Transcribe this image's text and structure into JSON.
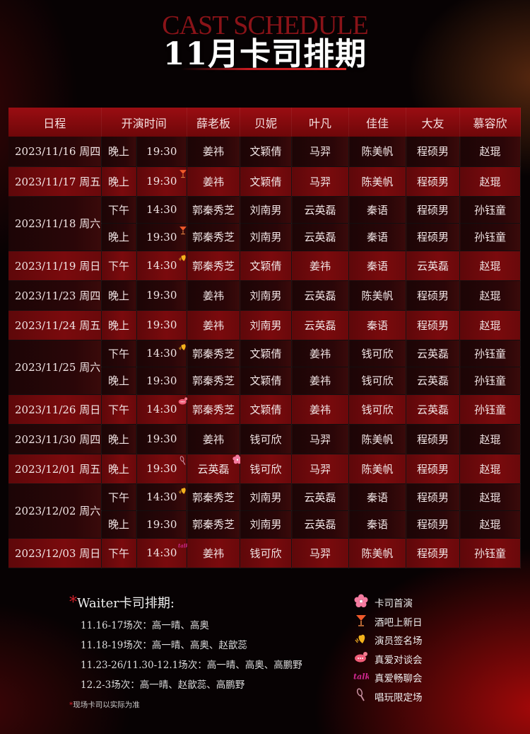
{
  "header": {
    "english_title": "CAST SCHEDULE",
    "title": "11月卡司排期"
  },
  "table": {
    "columns": [
      "日程",
      "开演时间",
      "薛老板",
      "贝妮",
      "叶凡",
      "佳佳",
      "大友",
      "慕容欣"
    ],
    "schedule": [
      {
        "date": "2023/11/16 周四",
        "shows": [
          {
            "period": "晚上",
            "time": "19:30",
            "cast": [
              "姜祎",
              "文颖倩",
              "马羿",
              "陈美帆",
              "程硕男",
              "赵琨"
            ],
            "marks": []
          }
        ]
      },
      {
        "date": "2023/11/17 周五",
        "shows": [
          {
            "period": "晚上",
            "time": "19:30",
            "cast": [
              "姜祎",
              "文颖倩",
              "马羿",
              "陈美帆",
              "程硕男",
              "赵琨"
            ],
            "marks": [
              "cocktail"
            ]
          }
        ]
      },
      {
        "date": "2023/11/18 周六",
        "shows": [
          {
            "period": "下午",
            "time": "14:30",
            "cast": [
              "郭秦秀芝",
              "刘南男",
              "云英磊",
              "秦语",
              "程硕男",
              "孙钰童"
            ],
            "marks": []
          },
          {
            "period": "晚上",
            "time": "19:30",
            "cast": [
              "郭秦秀芝",
              "刘南男",
              "云英磊",
              "秦语",
              "程硕男",
              "孙钰童"
            ],
            "marks": [
              "cocktail"
            ]
          }
        ]
      },
      {
        "date": "2023/11/19 周日",
        "shows": [
          {
            "period": "下午",
            "time": "14:30",
            "cast": [
              "郭秦秀芝",
              "文颖倩",
              "姜祎",
              "秦语",
              "云英磊",
              "赵琨"
            ],
            "marks": [
              "heart"
            ]
          }
        ]
      },
      {
        "date": "2023/11/23 周四",
        "shows": [
          {
            "period": "晚上",
            "time": "19:30",
            "cast": [
              "姜祎",
              "刘南男",
              "云英磊",
              "陈美帆",
              "程硕男",
              "赵琨"
            ],
            "marks": []
          }
        ]
      },
      {
        "date": "2023/11/24 周五",
        "shows": [
          {
            "period": "晚上",
            "time": "19:30",
            "cast": [
              "姜祎",
              "刘南男",
              "云英磊",
              "秦语",
              "程硕男",
              "赵琨"
            ],
            "marks": []
          }
        ]
      },
      {
        "date": "2023/11/25 周六",
        "shows": [
          {
            "period": "下午",
            "time": "14:30",
            "cast": [
              "郭秦秀芝",
              "文颖倩",
              "姜祎",
              "钱可欣",
              "云英磊",
              "孙钰童"
            ],
            "marks": [
              "heart"
            ]
          },
          {
            "period": "晚上",
            "time": "19:30",
            "cast": [
              "郭秦秀芝",
              "文颖倩",
              "姜祎",
              "钱可欣",
              "云英磊",
              "孙钰童"
            ],
            "marks": []
          }
        ]
      },
      {
        "date": "2023/11/26 周日",
        "shows": [
          {
            "period": "下午",
            "time": "14:30",
            "cast": [
              "郭秦秀芝",
              "文颖倩",
              "姜祎",
              "钱可欣",
              "云英磊",
              "孙钰童"
            ],
            "marks": [
              "chat"
            ]
          }
        ]
      },
      {
        "date": "2023/11/30 周四",
        "shows": [
          {
            "period": "晚上",
            "time": "19:30",
            "cast": [
              "姜祎",
              "钱可欣",
              "马羿",
              "陈美帆",
              "程硕男",
              "赵琨"
            ],
            "marks": []
          }
        ]
      },
      {
        "date": "2023/12/01 周五",
        "shows": [
          {
            "period": "晚上",
            "time": "19:30",
            "cast": [
              "云英磊",
              "钱可欣",
              "马羿",
              "陈美帆",
              "程硕男",
              "赵琨"
            ],
            "marks": [
              "mic",
              "flower"
            ]
          }
        ]
      },
      {
        "date": "2023/12/02 周六",
        "shows": [
          {
            "period": "下午",
            "time": "14:30",
            "cast": [
              "郭秦秀芝",
              "刘南男",
              "云英磊",
              "秦语",
              "程硕男",
              "赵琨"
            ],
            "marks": [
              "heart"
            ]
          },
          {
            "period": "晚上",
            "time": "19:30",
            "cast": [
              "郭秦秀芝",
              "刘南男",
              "云英磊",
              "秦语",
              "程硕男",
              "赵琨"
            ],
            "marks": []
          }
        ]
      },
      {
        "date": "2023/12/03 周日",
        "shows": [
          {
            "period": "下午",
            "time": "14:30",
            "cast": [
              "姜祎",
              "钱可欣",
              "马羿",
              "陈美帆",
              "程硕男",
              "孙钰童"
            ],
            "marks": [
              "talk"
            ]
          }
        ]
      }
    ]
  },
  "waiter": {
    "title": "Waiter卡司排期:",
    "lines": [
      "11.16-17场次：高一晴、高奥",
      "11.18-19场次：高一晴、高奥、赵歆蕊",
      "11.23-26/11.30-12.1场次：高一晴、高奥、高鹏野",
      "12.2-3场次：高一晴、赵歆蕊、高鹏野"
    ],
    "footnote": "现场卡司以实际为准"
  },
  "legend": [
    {
      "icon": "flower",
      "label": "卡司首演"
    },
    {
      "icon": "cocktail",
      "label": "酒吧上新日"
    },
    {
      "icon": "heart",
      "label": "演员签名场"
    },
    {
      "icon": "chat",
      "label": "真爱对谈会"
    },
    {
      "icon": "talk",
      "label": "真爱畅聊会"
    },
    {
      "icon": "mic",
      "label": "唱玩限定场"
    }
  ],
  "colors": {
    "accent": "#c51a20",
    "row_dark": "#1c0506",
    "row_red": "#6e0709"
  }
}
